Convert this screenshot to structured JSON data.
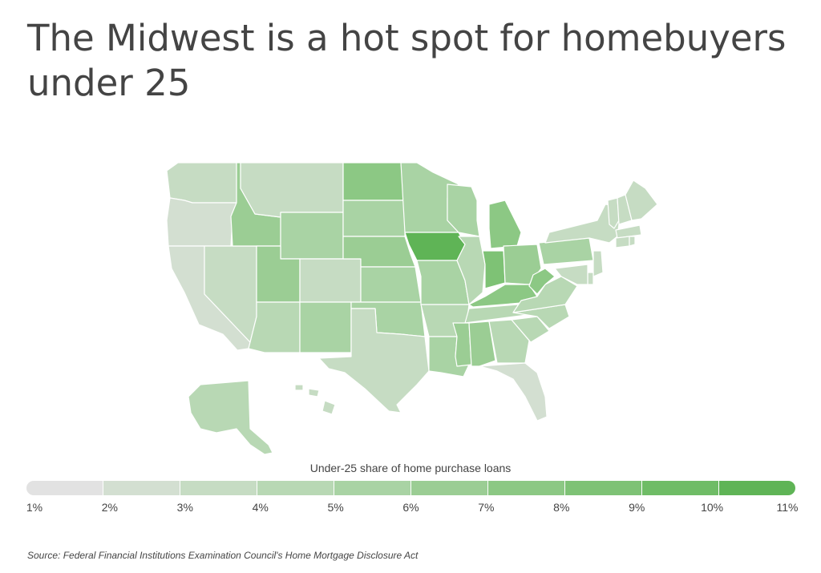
{
  "title": "The Midwest is a hot spot for homebuyers under 25",
  "legend": {
    "title": "Under-25 share of home purchase loans",
    "ticks": [
      "1%",
      "2%",
      "3%",
      "4%",
      "5%",
      "6%",
      "7%",
      "8%",
      "9%",
      "10%",
      "11%"
    ],
    "colors": [
      "#e2e2e2",
      "#d3dfd1",
      "#c6dcc3",
      "#b8d8b4",
      "#a9d3a4",
      "#9bcd94",
      "#8cc884",
      "#7ec275",
      "#6fbc66",
      "#5fb456"
    ]
  },
  "source": "Source:  Federal Financial Institutions Examination Council's Home Mortgage Disclosure Act",
  "chart_data": {
    "type": "choropleth",
    "metric": "Under-25 share of home purchase loans (%)",
    "scale": [
      1,
      11
    ],
    "states": {
      "WA": 3.5,
      "OR": 2.5,
      "CA": 2.0,
      "NV": 3.5,
      "ID": 6.0,
      "MT": 3.0,
      "WY": 5.0,
      "UT": 6.5,
      "AZ": 4.0,
      "CO": 3.5,
      "NM": 5.5,
      "ND": 7.5,
      "SD": 5.5,
      "NE": 6.0,
      "KS": 5.5,
      "OK": 5.0,
      "TX": 3.5,
      "MN": 5.5,
      "IA": 10.5,
      "MO": 5.5,
      "AR": 4.5,
      "LA": 5.5,
      "WI": 5.0,
      "IL": 4.5,
      "MI": 7.0,
      "IN": 8.0,
      "OH": 6.5,
      "KY": 7.0,
      "TN": 4.0,
      "MS": 6.0,
      "AL": 6.0,
      "GA": 4.0,
      "FL": 2.5,
      "SC": 4.5,
      "NC": 4.0,
      "VA": 4.0,
      "WV": 7.5,
      "PA": 5.5,
      "NY": 3.0,
      "VT": 3.5,
      "NH": 3.5,
      "ME": 3.5,
      "MA": 3.0,
      "CT": 3.0,
      "RI": 3.0,
      "NJ": 3.0,
      "DE": 3.5,
      "MD": 3.5,
      "AK": 4.5,
      "HI": 3.0
    }
  }
}
